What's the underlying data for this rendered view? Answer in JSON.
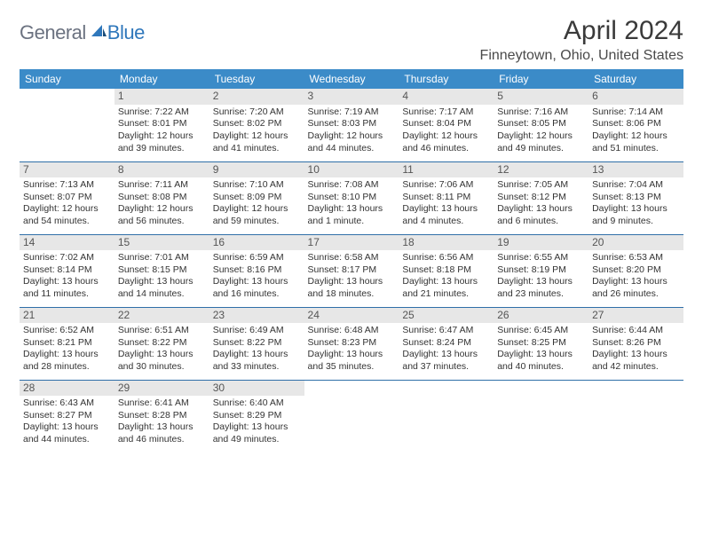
{
  "logo": {
    "general": "General",
    "blue": "Blue"
  },
  "title": "April 2024",
  "location": "Finneytown, Ohio, United States",
  "header_bg": "#3b8bc8",
  "border_color": "#2f6fa8",
  "daynum_bg": "#e7e7e7",
  "day_headers": [
    "Sunday",
    "Monday",
    "Tuesday",
    "Wednesday",
    "Thursday",
    "Friday",
    "Saturday"
  ],
  "weeks": [
    [
      null,
      {
        "n": "1",
        "sr": "Sunrise: 7:22 AM",
        "ss": "Sunset: 8:01 PM",
        "d1": "Daylight: 12 hours",
        "d2": "and 39 minutes."
      },
      {
        "n": "2",
        "sr": "Sunrise: 7:20 AM",
        "ss": "Sunset: 8:02 PM",
        "d1": "Daylight: 12 hours",
        "d2": "and 41 minutes."
      },
      {
        "n": "3",
        "sr": "Sunrise: 7:19 AM",
        "ss": "Sunset: 8:03 PM",
        "d1": "Daylight: 12 hours",
        "d2": "and 44 minutes."
      },
      {
        "n": "4",
        "sr": "Sunrise: 7:17 AM",
        "ss": "Sunset: 8:04 PM",
        "d1": "Daylight: 12 hours",
        "d2": "and 46 minutes."
      },
      {
        "n": "5",
        "sr": "Sunrise: 7:16 AM",
        "ss": "Sunset: 8:05 PM",
        "d1": "Daylight: 12 hours",
        "d2": "and 49 minutes."
      },
      {
        "n": "6",
        "sr": "Sunrise: 7:14 AM",
        "ss": "Sunset: 8:06 PM",
        "d1": "Daylight: 12 hours",
        "d2": "and 51 minutes."
      }
    ],
    [
      {
        "n": "7",
        "sr": "Sunrise: 7:13 AM",
        "ss": "Sunset: 8:07 PM",
        "d1": "Daylight: 12 hours",
        "d2": "and 54 minutes."
      },
      {
        "n": "8",
        "sr": "Sunrise: 7:11 AM",
        "ss": "Sunset: 8:08 PM",
        "d1": "Daylight: 12 hours",
        "d2": "and 56 minutes."
      },
      {
        "n": "9",
        "sr": "Sunrise: 7:10 AM",
        "ss": "Sunset: 8:09 PM",
        "d1": "Daylight: 12 hours",
        "d2": "and 59 minutes."
      },
      {
        "n": "10",
        "sr": "Sunrise: 7:08 AM",
        "ss": "Sunset: 8:10 PM",
        "d1": "Daylight: 13 hours",
        "d2": "and 1 minute."
      },
      {
        "n": "11",
        "sr": "Sunrise: 7:06 AM",
        "ss": "Sunset: 8:11 PM",
        "d1": "Daylight: 13 hours",
        "d2": "and 4 minutes."
      },
      {
        "n": "12",
        "sr": "Sunrise: 7:05 AM",
        "ss": "Sunset: 8:12 PM",
        "d1": "Daylight: 13 hours",
        "d2": "and 6 minutes."
      },
      {
        "n": "13",
        "sr": "Sunrise: 7:04 AM",
        "ss": "Sunset: 8:13 PM",
        "d1": "Daylight: 13 hours",
        "d2": "and 9 minutes."
      }
    ],
    [
      {
        "n": "14",
        "sr": "Sunrise: 7:02 AM",
        "ss": "Sunset: 8:14 PM",
        "d1": "Daylight: 13 hours",
        "d2": "and 11 minutes."
      },
      {
        "n": "15",
        "sr": "Sunrise: 7:01 AM",
        "ss": "Sunset: 8:15 PM",
        "d1": "Daylight: 13 hours",
        "d2": "and 14 minutes."
      },
      {
        "n": "16",
        "sr": "Sunrise: 6:59 AM",
        "ss": "Sunset: 8:16 PM",
        "d1": "Daylight: 13 hours",
        "d2": "and 16 minutes."
      },
      {
        "n": "17",
        "sr": "Sunrise: 6:58 AM",
        "ss": "Sunset: 8:17 PM",
        "d1": "Daylight: 13 hours",
        "d2": "and 18 minutes."
      },
      {
        "n": "18",
        "sr": "Sunrise: 6:56 AM",
        "ss": "Sunset: 8:18 PM",
        "d1": "Daylight: 13 hours",
        "d2": "and 21 minutes."
      },
      {
        "n": "19",
        "sr": "Sunrise: 6:55 AM",
        "ss": "Sunset: 8:19 PM",
        "d1": "Daylight: 13 hours",
        "d2": "and 23 minutes."
      },
      {
        "n": "20",
        "sr": "Sunrise: 6:53 AM",
        "ss": "Sunset: 8:20 PM",
        "d1": "Daylight: 13 hours",
        "d2": "and 26 minutes."
      }
    ],
    [
      {
        "n": "21",
        "sr": "Sunrise: 6:52 AM",
        "ss": "Sunset: 8:21 PM",
        "d1": "Daylight: 13 hours",
        "d2": "and 28 minutes."
      },
      {
        "n": "22",
        "sr": "Sunrise: 6:51 AM",
        "ss": "Sunset: 8:22 PM",
        "d1": "Daylight: 13 hours",
        "d2": "and 30 minutes."
      },
      {
        "n": "23",
        "sr": "Sunrise: 6:49 AM",
        "ss": "Sunset: 8:22 PM",
        "d1": "Daylight: 13 hours",
        "d2": "and 33 minutes."
      },
      {
        "n": "24",
        "sr": "Sunrise: 6:48 AM",
        "ss": "Sunset: 8:23 PM",
        "d1": "Daylight: 13 hours",
        "d2": "and 35 minutes."
      },
      {
        "n": "25",
        "sr": "Sunrise: 6:47 AM",
        "ss": "Sunset: 8:24 PM",
        "d1": "Daylight: 13 hours",
        "d2": "and 37 minutes."
      },
      {
        "n": "26",
        "sr": "Sunrise: 6:45 AM",
        "ss": "Sunset: 8:25 PM",
        "d1": "Daylight: 13 hours",
        "d2": "and 40 minutes."
      },
      {
        "n": "27",
        "sr": "Sunrise: 6:44 AM",
        "ss": "Sunset: 8:26 PM",
        "d1": "Daylight: 13 hours",
        "d2": "and 42 minutes."
      }
    ],
    [
      {
        "n": "28",
        "sr": "Sunrise: 6:43 AM",
        "ss": "Sunset: 8:27 PM",
        "d1": "Daylight: 13 hours",
        "d2": "and 44 minutes."
      },
      {
        "n": "29",
        "sr": "Sunrise: 6:41 AM",
        "ss": "Sunset: 8:28 PM",
        "d1": "Daylight: 13 hours",
        "d2": "and 46 minutes."
      },
      {
        "n": "30",
        "sr": "Sunrise: 6:40 AM",
        "ss": "Sunset: 8:29 PM",
        "d1": "Daylight: 13 hours",
        "d2": "and 49 minutes."
      },
      null,
      null,
      null,
      null
    ]
  ]
}
